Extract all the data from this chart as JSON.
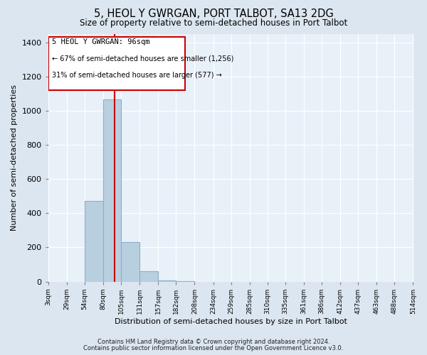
{
  "title": "5, HEOL Y GWRGAN, PORT TALBOT, SA13 2DG",
  "subtitle": "Size of property relative to semi-detached houses in Port Talbot",
  "xlabel": "Distribution of semi-detached houses by size in Port Talbot",
  "ylabel": "Number of semi-detached properties",
  "property_size": 96,
  "property_label": "5 HEOL Y GWRGAN: 96sqm",
  "annotation_line1": "← 67% of semi-detached houses are smaller (1,256)",
  "annotation_line2": "31% of semi-detached houses are larger (577) →",
  "bin_left_edges": [
    3,
    29,
    54,
    80,
    105,
    131,
    157,
    182,
    208,
    234,
    259,
    285,
    310,
    335,
    361,
    386,
    412,
    437,
    463,
    488
  ],
  "bin_labels": [
    "3sqm",
    "29sqm",
    "54sqm",
    "80sqm",
    "105sqm",
    "131sqm",
    "157sqm",
    "182sqm",
    "208sqm",
    "234sqm",
    "259sqm",
    "285sqm",
    "310sqm",
    "335sqm",
    "361sqm",
    "386sqm",
    "412sqm",
    "437sqm",
    "463sqm",
    "488sqm",
    "514sqm"
  ],
  "tick_positions": [
    3,
    29,
    54,
    80,
    105,
    131,
    157,
    182,
    208,
    234,
    259,
    285,
    310,
    335,
    361,
    386,
    412,
    437,
    463,
    488,
    514
  ],
  "bar_heights": [
    0,
    0,
    470,
    1065,
    230,
    60,
    5,
    2,
    0,
    0,
    0,
    0,
    0,
    0,
    0,
    0,
    0,
    0,
    0,
    0
  ],
  "bar_color": "#b8cfe0",
  "bar_edge_color": "#8aafc8",
  "red_line_color": "#cc0000",
  "annotation_border_color": "#cc0000",
  "ylim": [
    0,
    1450
  ],
  "yticks": [
    0,
    200,
    400,
    600,
    800,
    1000,
    1200,
    1400
  ],
  "footnote1": "Contains HM Land Registry data © Crown copyright and database right 2024.",
  "footnote2": "Contains public sector information licensed under the Open Government Licence v3.0.",
  "bg_color": "#dce6f0",
  "plot_bg_color": "#e8f0f8"
}
